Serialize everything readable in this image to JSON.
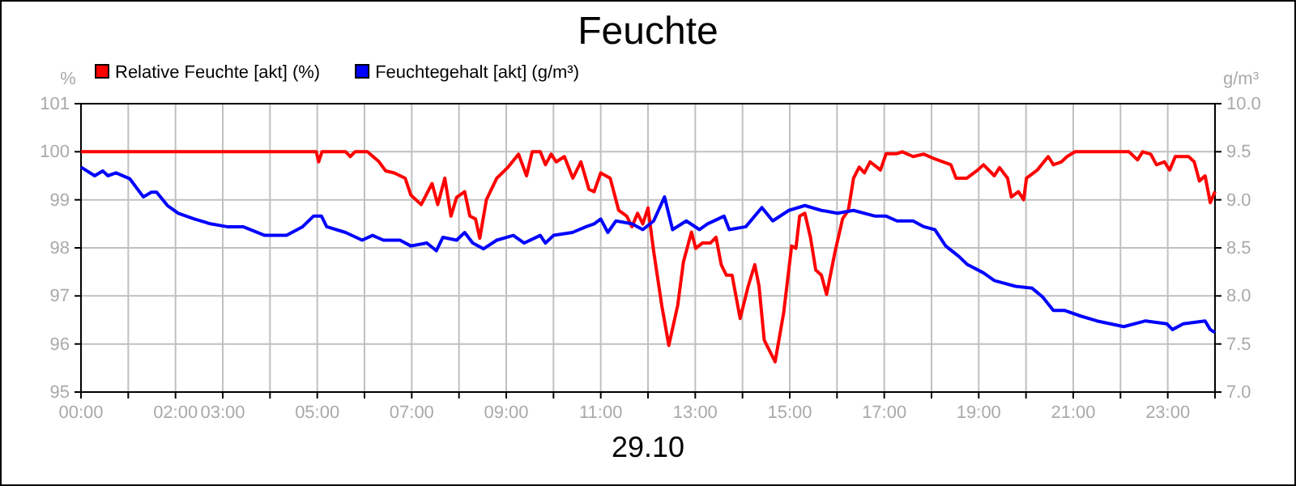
{
  "chart_data": {
    "type": "line",
    "title": "Feuchte",
    "xlabel": "29.10",
    "ylabel": "%",
    "y2label": "g/m³",
    "xlim": [
      0,
      24
    ],
    "xticks": [
      {
        "value": 0,
        "label": "00:00"
      },
      {
        "value": 1,
        "label": null
      },
      {
        "value": 2,
        "label": "02:00"
      },
      {
        "value": 3,
        "label": "03:00"
      },
      {
        "value": 4,
        "label": null
      },
      {
        "value": 5,
        "label": "05:00"
      },
      {
        "value": 6,
        "label": null
      },
      {
        "value": 7,
        "label": "07:00"
      },
      {
        "value": 8,
        "label": null
      },
      {
        "value": 9,
        "label": "09:00"
      },
      {
        "value": 10,
        "label": null
      },
      {
        "value": 11,
        "label": "11:00"
      },
      {
        "value": 12,
        "label": null
      },
      {
        "value": 13,
        "label": "13:00"
      },
      {
        "value": 14,
        "label": null
      },
      {
        "value": 15,
        "label": "15:00"
      },
      {
        "value": 16,
        "label": null
      },
      {
        "value": 17,
        "label": "17:00"
      },
      {
        "value": 18,
        "label": null
      },
      {
        "value": 19,
        "label": "19:00"
      },
      {
        "value": 20,
        "label": null
      },
      {
        "value": 21,
        "label": "21:00"
      },
      {
        "value": 22,
        "label": null
      },
      {
        "value": 23,
        "label": "23:00"
      },
      {
        "value": 24,
        "label": null
      }
    ],
    "ylim": [
      95,
      101
    ],
    "yticks": [
      95,
      96,
      97,
      98,
      99,
      100,
      101
    ],
    "y2lim": [
      7,
      10
    ],
    "y2ticks": [
      {
        "value": 7,
        "label": "7.0"
      },
      {
        "value": 7.5,
        "label": "7.5"
      },
      {
        "value": 8,
        "label": "8.0"
      },
      {
        "value": 8.5,
        "label": "8.5"
      },
      {
        "value": 9,
        "label": "9.0"
      },
      {
        "value": 9.5,
        "label": "9.5"
      },
      {
        "value": 10,
        "label": "10.0"
      }
    ],
    "grid": true,
    "legend": "top left",
    "line_style": "solid",
    "marker": "none",
    "series": [
      {
        "name": "Relative Feuchte [akt] (%)",
        "color": "#ff0000",
        "x": [
          0,
          4.98,
          5.03,
          5.1,
          5.6,
          5.7,
          5.8,
          6.06,
          6.3,
          6.45,
          6.63,
          6.86,
          6.98,
          7.2,
          7.43,
          7.55,
          7.7,
          7.83,
          7.95,
          8.12,
          8.23,
          8.35,
          8.44,
          8.58,
          8.8,
          9.03,
          9.26,
          9.43,
          9.55,
          9.72,
          9.83,
          9.95,
          10.06,
          10.23,
          10.41,
          10.58,
          10.75,
          10.86,
          11.0,
          11.2,
          11.38,
          11.55,
          11.66,
          11.78,
          11.89,
          12.0,
          12.12,
          12.29,
          12.44,
          12.63,
          12.75,
          12.92,
          13.01,
          13.15,
          13.32,
          13.44,
          13.55,
          13.66,
          13.78,
          13.95,
          14.12,
          14.26,
          14.35,
          14.46,
          14.69,
          14.87,
          15.04,
          15.13,
          15.21,
          15.32,
          15.44,
          15.55,
          15.67,
          15.78,
          15.95,
          16.12,
          16.24,
          16.35,
          16.47,
          16.58,
          16.7,
          16.92,
          17.04,
          17.27,
          17.38,
          17.61,
          17.84,
          18.07,
          18.41,
          18.52,
          18.75,
          18.98,
          19.1,
          19.33,
          19.44,
          19.61,
          19.69,
          19.84,
          19.95,
          20.01,
          20.24,
          20.47,
          20.58,
          20.75,
          20.87,
          21.04,
          22.18,
          22.36,
          22.47,
          22.64,
          22.76,
          22.93,
          23.04,
          23.16,
          23.44,
          23.56,
          23.67,
          23.79,
          23.9,
          24.0
        ],
        "values": [
          100,
          100,
          99.79,
          100,
          100,
          99.9,
          100,
          100,
          99.8,
          99.6,
          99.56,
          99.45,
          99.1,
          98.9,
          99.34,
          98.9,
          99.45,
          98.66,
          99.05,
          99.17,
          98.66,
          98.6,
          98.2,
          99.0,
          99.45,
          99.67,
          99.95,
          99.5,
          100,
          100,
          99.73,
          99.95,
          99.79,
          99.9,
          99.45,
          99.79,
          99.22,
          99.17,
          99.56,
          99.45,
          98.78,
          98.66,
          98.44,
          98.72,
          98.5,
          98.83,
          97.93,
          96.81,
          95.97,
          96.81,
          97.71,
          98.33,
          97.99,
          98.1,
          98.1,
          98.22,
          97.65,
          97.43,
          97.43,
          96.53,
          97.2,
          97.65,
          97.2,
          96.08,
          95.63,
          96.64,
          98.04,
          97.99,
          98.66,
          98.72,
          98.21,
          97.54,
          97.43,
          97.03,
          97.88,
          98.61,
          98.78,
          99.45,
          99.68,
          99.56,
          99.79,
          99.62,
          99.96,
          99.96,
          100,
          99.9,
          99.95,
          99.85,
          99.73,
          99.45,
          99.45,
          99.62,
          99.73,
          99.5,
          99.67,
          99.45,
          99.06,
          99.17,
          99.0,
          99.45,
          99.62,
          99.9,
          99.73,
          99.79,
          99.9,
          100,
          100,
          99.83,
          100,
          99.95,
          99.73,
          99.79,
          99.62,
          99.9,
          99.9,
          99.79,
          99.39,
          99.5,
          98.94,
          99.17
        ]
      },
      {
        "name": "Feuchtegehalt [akt] (g/m³)",
        "color": "#0000ff",
        "axis": "y2",
        "x": [
          0,
          0.29,
          0.46,
          0.57,
          0.74,
          1.03,
          1.32,
          1.49,
          1.6,
          1.83,
          2.06,
          2.4,
          2.74,
          3.09,
          3.43,
          3.89,
          4.35,
          4.69,
          4.92,
          5.09,
          5.2,
          5.6,
          5.95,
          6.17,
          6.4,
          6.75,
          6.98,
          7.32,
          7.52,
          7.66,
          7.95,
          8.12,
          8.29,
          8.52,
          8.8,
          9.15,
          9.38,
          9.72,
          9.83,
          10.0,
          10.4,
          10.69,
          10.86,
          11.0,
          11.15,
          11.32,
          11.66,
          11.89,
          12.12,
          12.35,
          12.52,
          12.81,
          13.09,
          13.26,
          13.61,
          13.72,
          14.07,
          14.41,
          14.64,
          14.98,
          15.32,
          15.67,
          16.01,
          16.35,
          16.81,
          17.04,
          17.27,
          17.61,
          17.84,
          18.07,
          18.3,
          18.58,
          18.75,
          19.1,
          19.33,
          19.78,
          20.13,
          20.35,
          20.58,
          20.81,
          21.16,
          21.5,
          22.07,
          22.53,
          22.98,
          23.1,
          23.33,
          23.79,
          23.9,
          24.0
        ],
        "values": [
          9.34,
          9.25,
          9.3,
          9.25,
          9.28,
          9.22,
          9.03,
          9.08,
          9.08,
          8.94,
          8.86,
          8.8,
          8.75,
          8.72,
          8.72,
          8.63,
          8.63,
          8.72,
          8.83,
          8.83,
          8.72,
          8.66,
          8.58,
          8.63,
          8.58,
          8.58,
          8.52,
          8.55,
          8.47,
          8.61,
          8.58,
          8.66,
          8.55,
          8.49,
          8.58,
          8.63,
          8.55,
          8.63,
          8.55,
          8.63,
          8.66,
          8.72,
          8.75,
          8.8,
          8.66,
          8.78,
          8.75,
          8.69,
          8.78,
          9.03,
          8.69,
          8.78,
          8.69,
          8.75,
          8.83,
          8.69,
          8.72,
          8.92,
          8.78,
          8.89,
          8.94,
          8.89,
          8.86,
          8.89,
          8.83,
          8.83,
          8.78,
          8.78,
          8.72,
          8.69,
          8.52,
          8.41,
          8.33,
          8.24,
          8.16,
          8.1,
          8.08,
          7.99,
          7.85,
          7.85,
          7.79,
          7.74,
          7.68,
          7.74,
          7.71,
          7.65,
          7.71,
          7.74,
          7.65,
          7.62
        ]
      }
    ]
  }
}
